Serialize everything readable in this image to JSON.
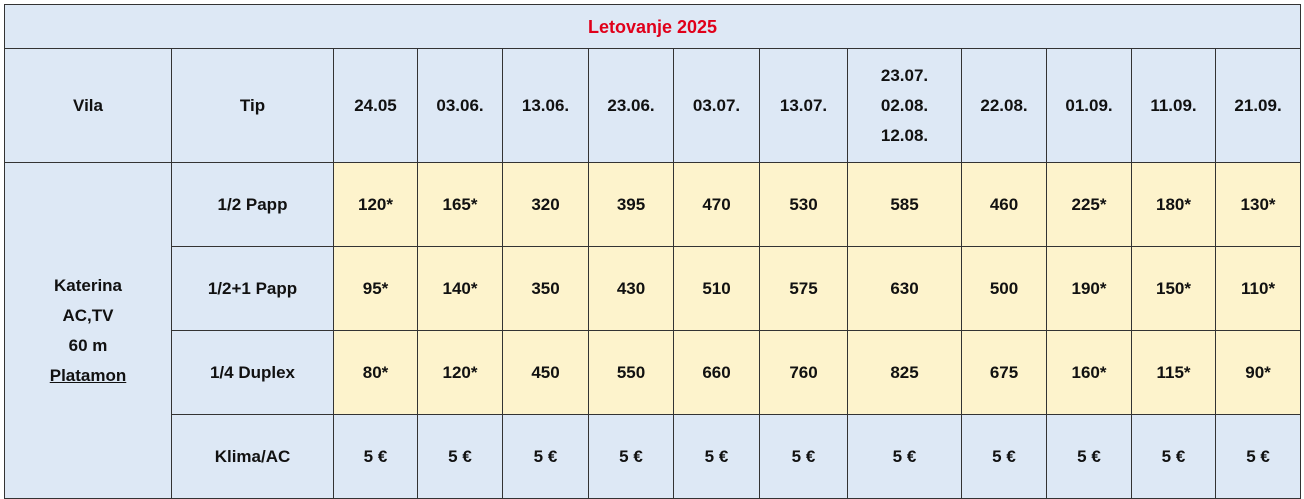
{
  "table": {
    "title": "Letovanje 2025",
    "header": {
      "vila": "Vila",
      "tip": "Tip",
      "dates": [
        "24.05",
        "03.06.",
        "13.06.",
        "23.06.",
        "03.07.",
        "13.07.",
        [
          "23.07.",
          "02.08.",
          "12.08."
        ],
        "22.08.",
        "01.09.",
        "11.09.",
        "21.09."
      ]
    },
    "vila": [
      "Katerina",
      "AC,TV",
      "60 m",
      "Platamon"
    ],
    "rows": [
      {
        "tip": "1/2 Papp",
        "prices": [
          "120*",
          "165*",
          "320",
          "395",
          "470",
          "530",
          "585",
          "460",
          "225*",
          "180*",
          "130*"
        ]
      },
      {
        "tip": "1/2+1 Papp",
        "prices": [
          "95*",
          "140*",
          "350",
          "430",
          "510",
          "575",
          "630",
          "500",
          "190*",
          "150*",
          "110*"
        ]
      },
      {
        "tip": "1/4 Duplex",
        "prices": [
          "80*",
          "120*",
          "450",
          "550",
          "660",
          "760",
          "825",
          "675",
          "160*",
          "115*",
          "90*"
        ]
      },
      {
        "tip": "Klima/AC",
        "prices": [
          "5 €",
          "5 €",
          "5 €",
          "5 €",
          "5 €",
          "5 €",
          "5 €",
          "5 €",
          "5 €",
          "5 €",
          "5 €"
        ]
      }
    ]
  }
}
